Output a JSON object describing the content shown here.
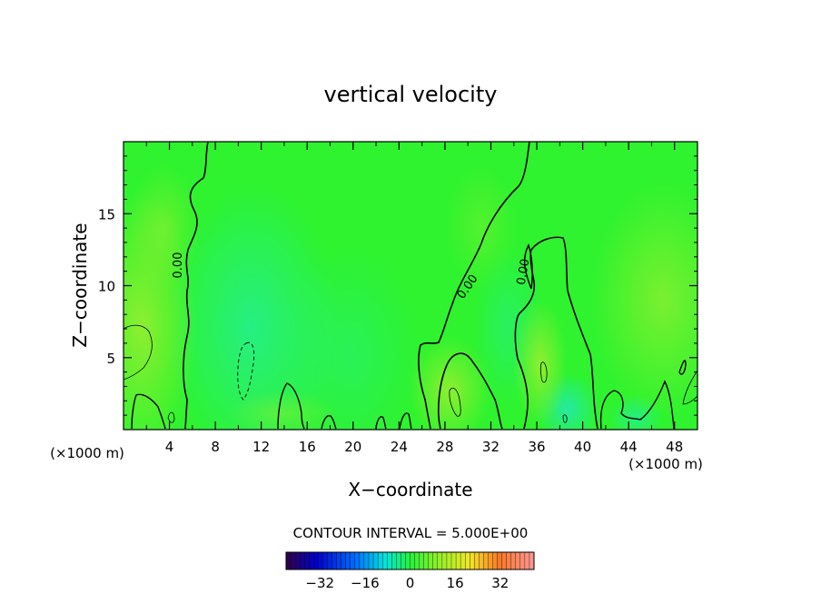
{
  "chart_data": {
    "type": "contour",
    "title": "vertical velocity",
    "xlabel": "X−coordinate",
    "ylabel": "Z−coordinate",
    "x_unit_left": "(×1000 m)",
    "x_unit_right": "(×1000 m)",
    "xlim": [
      0,
      50
    ],
    "ylim": [
      0,
      20
    ],
    "x_ticks": [
      4,
      8,
      12,
      16,
      20,
      24,
      28,
      32,
      36,
      40,
      44,
      48
    ],
    "y_ticks": [
      5,
      10,
      15
    ],
    "contour_labels": [
      {
        "text": "0.00",
        "x": 5.2,
        "z": 11.0
      },
      {
        "text": "0.00",
        "x": 30.3,
        "z": 10.0
      },
      {
        "text": "0.00",
        "x": 35.2,
        "z": 11.0
      }
    ],
    "contour_interval_text": "CONTOUR INTERVAL = 5.000E+00",
    "colorbar": {
      "min": -44,
      "max": 44,
      "ticks": [
        -32,
        -16,
        0,
        16,
        32
      ]
    },
    "colors": {
      "field_base": "#2ef32e",
      "field_cyan": "#22eea0",
      "field_yellow": "#9eee30"
    }
  }
}
